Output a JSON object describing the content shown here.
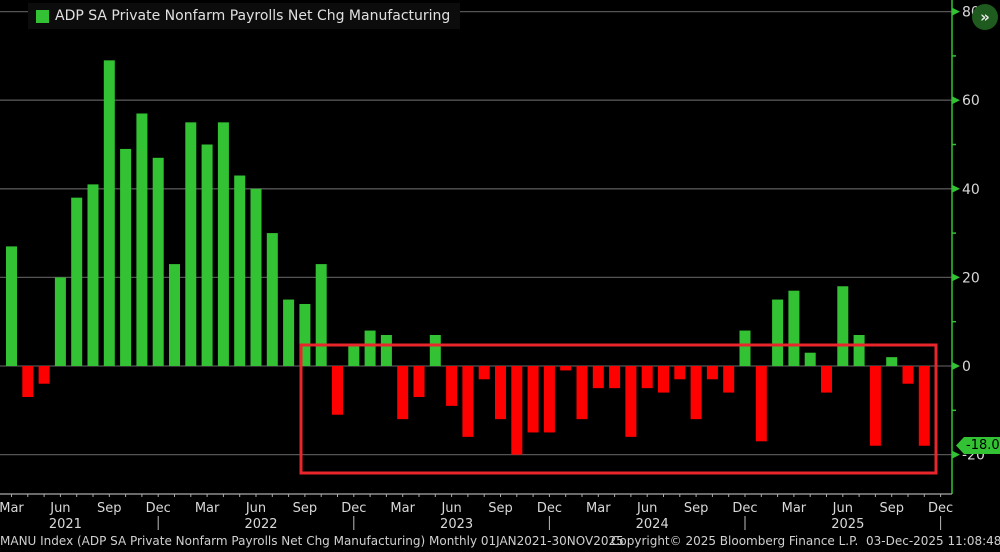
{
  "legend": {
    "label": "ADP SA Private Nonfarm Payrolls Net Chg Manufacturing",
    "color": "#33c233"
  },
  "expand_button": {
    "icon": "double-chevron-right-icon",
    "glyph": "»"
  },
  "last_value_tag": "-18.0",
  "footer": {
    "source": "MANU Index (ADP SA Private Nonfarm Payrolls Net Chg Manufacturing) Monthly 01JAN2021-30NOV2025",
    "copyright": "Copyright© 2025 Bloomberg Finance L.P.",
    "timestamp": "03-Dec-2025 11:08:48"
  },
  "colors": {
    "positive": "#33c233",
    "negative": "#ff0000",
    "axis": "#33c233",
    "grid": "#555555",
    "highlight_box": "#e8262b"
  },
  "chart_data": {
    "type": "bar",
    "title": "ADP SA Private Nonfarm Payrolls Net Chg Manufacturing",
    "xlabel": "",
    "ylabel": "",
    "ylim": [
      -28,
      82
    ],
    "yticks": [
      80,
      60,
      40,
      20,
      0,
      -20
    ],
    "grid": true,
    "legend_position": "top-left",
    "x_tick_labels": [
      "Mar",
      "Jun",
      "Sep",
      "Dec",
      "Mar",
      "Jun",
      "Sep",
      "Dec",
      "Mar",
      "Jun",
      "Sep",
      "Dec",
      "Mar",
      "Jun",
      "Sep",
      "Dec",
      "Mar",
      "Jun",
      "Sep",
      "Dec"
    ],
    "year_labels": [
      "2021",
      "2022",
      "2023",
      "2024",
      "2025"
    ],
    "categories": [
      "2021-03",
      "2021-04",
      "2021-05",
      "2021-06",
      "2021-07",
      "2021-08",
      "2021-09",
      "2021-10",
      "2021-11",
      "2021-12",
      "2022-01",
      "2022-02",
      "2022-03",
      "2022-04",
      "2022-05",
      "2022-06",
      "2022-07",
      "2022-08",
      "2022-09",
      "2022-10",
      "2022-11",
      "2022-12",
      "2023-01",
      "2023-02",
      "2023-03",
      "2023-04",
      "2023-05",
      "2023-06",
      "2023-07",
      "2023-08",
      "2023-09",
      "2023-10",
      "2023-11",
      "2023-12",
      "2024-01",
      "2024-02",
      "2024-03",
      "2024-04",
      "2024-05",
      "2024-06",
      "2024-07",
      "2024-08",
      "2024-09",
      "2024-10",
      "2024-11",
      "2024-12",
      "2025-01",
      "2025-02",
      "2025-03",
      "2025-04",
      "2025-05",
      "2025-06",
      "2025-07",
      "2025-08",
      "2025-09",
      "2025-10",
      "2025-11"
    ],
    "values": [
      27,
      -7,
      -4,
      20,
      38,
      41,
      69,
      49,
      57,
      47,
      23,
      55,
      50,
      55,
      43,
      40,
      30,
      15,
      14,
      23,
      -11,
      5,
      8,
      7,
      -12,
      -7,
      7,
      -9,
      -16,
      -3,
      -12,
      -20,
      -15,
      -15,
      -1,
      -12,
      -5,
      -5,
      -16,
      -5,
      -6,
      -3,
      -12,
      -3,
      -6,
      8,
      -17,
      15,
      17,
      3,
      -6,
      18,
      7,
      -18,
      2,
      -4,
      -18
    ],
    "last_value": -18.0,
    "annotations": [
      {
        "type": "highlight-rectangle",
        "from": "2022-10",
        "to": "2025-11",
        "y_range": [
          -24,
          5
        ],
        "color": "#e8262b"
      }
    ]
  }
}
